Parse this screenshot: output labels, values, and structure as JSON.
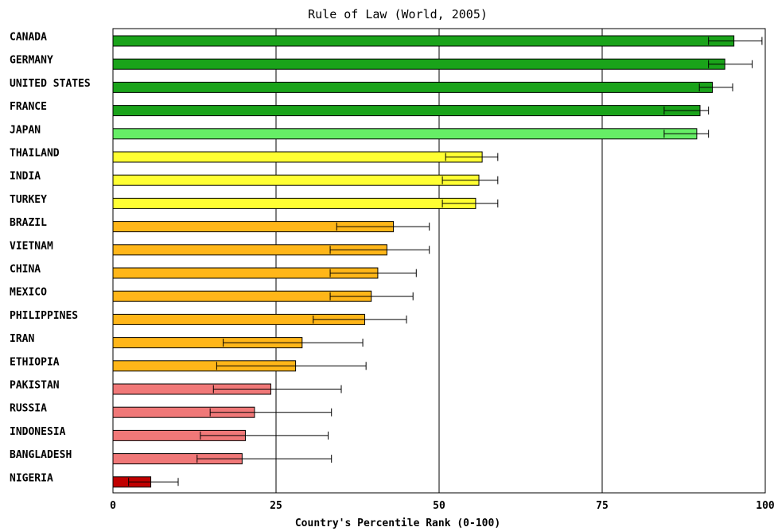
{
  "chart_data": {
    "type": "bar",
    "orientation": "horizontal",
    "title": "Rule of Law (World, 2005)",
    "xlabel": "Country's Percentile Rank (0-100)",
    "ylabel": "",
    "xlim": [
      0,
      100
    ],
    "xticks": [
      0,
      25,
      50,
      75,
      100
    ],
    "grid": true,
    "legend": "none",
    "categories": [
      "CANADA",
      "GERMANY",
      "UNITED STATES",
      "FRANCE",
      "JAPAN",
      "THAILAND",
      "INDIA",
      "TURKEY",
      "BRAZIL",
      "VIETNAM",
      "CHINA",
      "MEXICO",
      "PHILIPPINES",
      "IRAN",
      "ETHIOPIA",
      "PAKISTAN",
      "RUSSIA",
      "INDONESIA",
      "BANGLADESH",
      "NIGERIA"
    ],
    "values": [
      95.2,
      93.8,
      91.9,
      90.0,
      89.5,
      56.6,
      56.1,
      55.6,
      43.0,
      42.0,
      40.6,
      39.6,
      38.6,
      29.0,
      28.0,
      24.2,
      21.7,
      20.3,
      19.8,
      5.8
    ],
    "error_low": [
      91.3,
      91.3,
      89.9,
      84.5,
      84.5,
      51.0,
      50.5,
      50.5,
      34.3,
      33.3,
      33.3,
      33.3,
      30.7,
      16.9,
      15.9,
      15.4,
      14.9,
      13.4,
      12.9,
      2.4
    ],
    "error_high": [
      99.5,
      98.0,
      95.0,
      91.3,
      91.3,
      59.0,
      59.0,
      59.0,
      48.5,
      48.5,
      46.5,
      46.0,
      45.0,
      38.3,
      38.8,
      35.0,
      33.5,
      33.0,
      33.5,
      10.0
    ],
    "bar_colors": [
      "#1aa31a",
      "#1aa31a",
      "#1aa31a",
      "#1aa31a",
      "#66ee66",
      "#ffff33",
      "#ffff33",
      "#ffff33",
      "#ffb619",
      "#ffb619",
      "#ffb619",
      "#ffb619",
      "#ffb619",
      "#ffb619",
      "#ffb619",
      "#f07878",
      "#f07878",
      "#f07878",
      "#f07878",
      "#c00000"
    ]
  }
}
